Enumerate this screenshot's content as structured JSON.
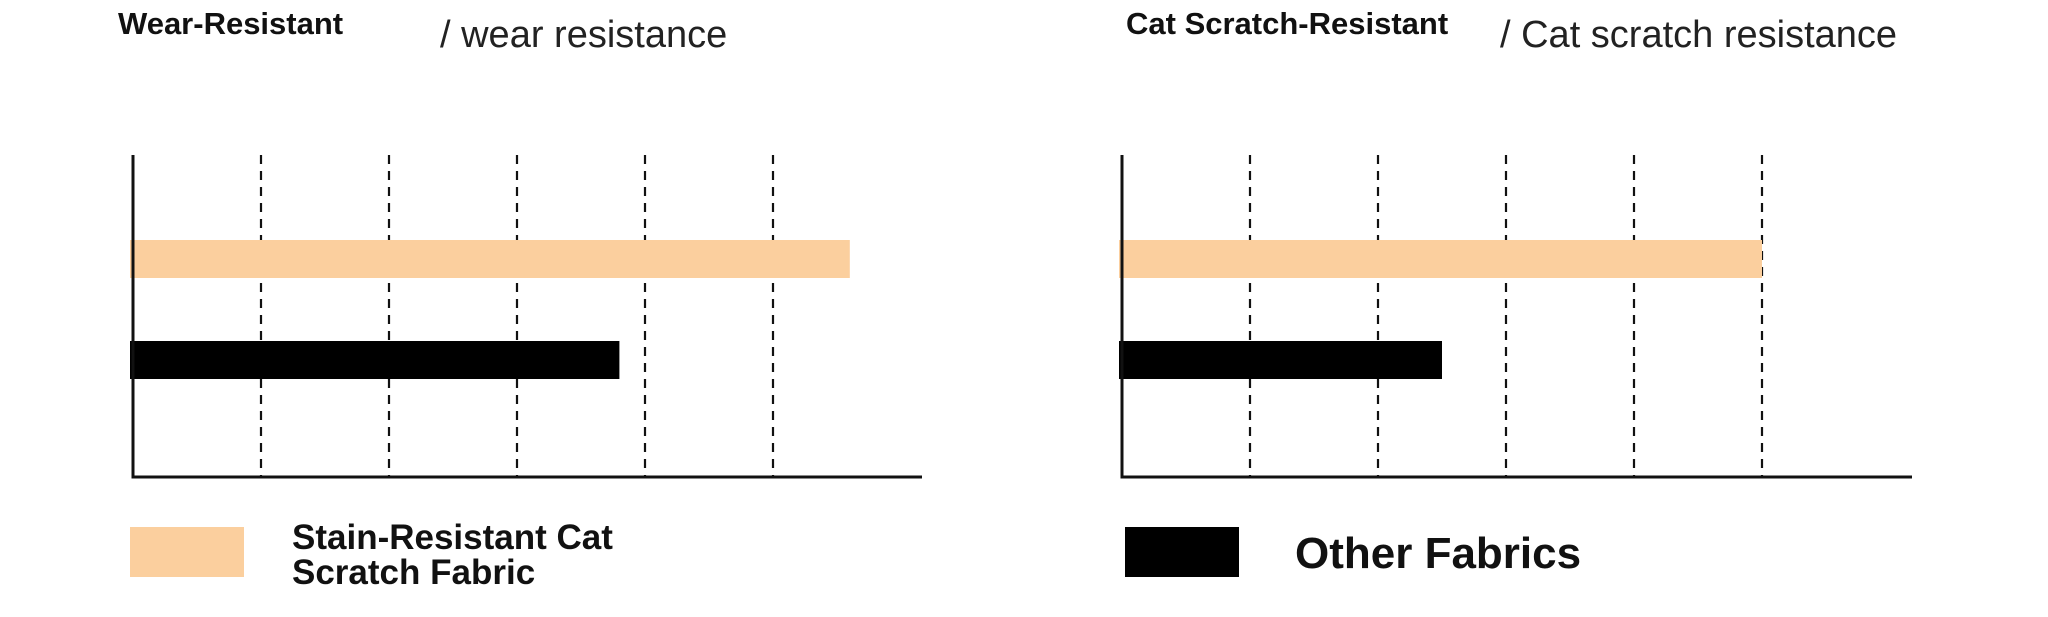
{
  "chart_data": [
    {
      "type": "bar",
      "orientation": "horizontal",
      "title": "Wear-Resistant",
      "subtitle": "/ wear resistance",
      "series": [
        {
          "name": "Stain-Resistant Cat Scratch Fabric",
          "values": [
            5.6
          ]
        },
        {
          "name": "Other Fabrics",
          "values": [
            3.8
          ]
        }
      ],
      "xlim": [
        0,
        6.2
      ],
      "grid": true,
      "grid_style": "dashed"
    },
    {
      "type": "bar",
      "orientation": "horizontal",
      "title": "Cat Scratch-Resistant",
      "subtitle": "/ Cat scratch resistance",
      "series": [
        {
          "name": "Stain-Resistant Cat Scratch Fabric",
          "values": [
            5.0
          ]
        },
        {
          "name": "Other Fabrics",
          "values": [
            2.5
          ]
        }
      ],
      "xlim": [
        0,
        6.2
      ],
      "grid": true,
      "grid_style": "dashed"
    }
  ],
  "legend": [
    {
      "label_line1": "Stain-Resistant Cat",
      "label_line2": "Scratch Fabric",
      "color": "#fbcf9e"
    },
    {
      "label": "Other Fabrics",
      "color": "#000000"
    }
  ],
  "colors": {
    "fabric": "#fbcf9e",
    "other": "#000000",
    "axis": "#111111"
  }
}
